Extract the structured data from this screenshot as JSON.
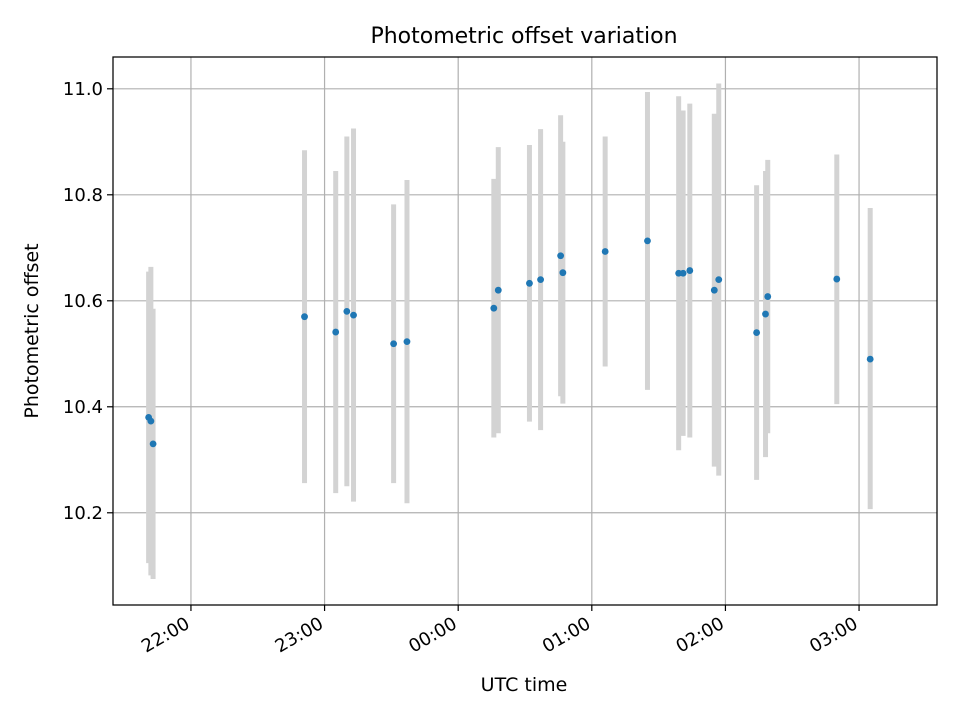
{
  "chart_data": {
    "type": "scatter",
    "title": "Photometric offset variation",
    "xlabel": "UTC time",
    "ylabel": "Photometric offset",
    "x_is_time": true,
    "xlim": [
      "21:25",
      "03:35"
    ],
    "ylim": [
      10.026,
      11.06
    ],
    "x_ticks": [
      "22:00",
      "23:00",
      "00:00",
      "01:00",
      "02:00",
      "03:00"
    ],
    "y_ticks": [
      "10.2",
      "10.4",
      "10.6",
      "10.8",
      "11.0"
    ],
    "grid": true,
    "legend": "none",
    "colors": {
      "point": "#1f77b4",
      "errorbar": "#d3d3d3",
      "grid": "#b0b0b0",
      "axes": "#000000"
    },
    "points": [
      {
        "x": "21:41",
        "y": 10.38,
        "ylow": 10.105,
        "yhigh": 10.655
      },
      {
        "x": "21:42",
        "y": 10.373,
        "ylow": 10.082,
        "yhigh": 10.664
      },
      {
        "x": "21:43",
        "y": 10.33,
        "ylow": 10.075,
        "yhigh": 10.585
      },
      {
        "x": "22:51",
        "y": 10.57,
        "ylow": 10.256,
        "yhigh": 10.884
      },
      {
        "x": "23:05",
        "y": 10.541,
        "ylow": 10.237,
        "yhigh": 10.845
      },
      {
        "x": "23:10",
        "y": 10.58,
        "ylow": 10.25,
        "yhigh": 10.91
      },
      {
        "x": "23:13",
        "y": 10.573,
        "ylow": 10.221,
        "yhigh": 10.925
      },
      {
        "x": "23:31",
        "y": 10.519,
        "ylow": 10.256,
        "yhigh": 10.782
      },
      {
        "x": "23:37",
        "y": 10.523,
        "ylow": 10.218,
        "yhigh": 10.828
      },
      {
        "x": "00:16",
        "y": 10.586,
        "ylow": 10.342,
        "yhigh": 10.83
      },
      {
        "x": "00:18",
        "y": 10.62,
        "ylow": 10.35,
        "yhigh": 10.89
      },
      {
        "x": "00:32",
        "y": 10.633,
        "ylow": 10.372,
        "yhigh": 10.894
      },
      {
        "x": "00:37",
        "y": 10.64,
        "ylow": 10.356,
        "yhigh": 10.924
      },
      {
        "x": "00:46",
        "y": 10.685,
        "ylow": 10.42,
        "yhigh": 10.95
      },
      {
        "x": "00:47",
        "y": 10.653,
        "ylow": 10.406,
        "yhigh": 10.9
      },
      {
        "x": "01:06",
        "y": 10.693,
        "ylow": 10.476,
        "yhigh": 10.91
      },
      {
        "x": "01:25",
        "y": 10.713,
        "ylow": 10.432,
        "yhigh": 10.994
      },
      {
        "x": "01:39",
        "y": 10.652,
        "ylow": 10.318,
        "yhigh": 10.986
      },
      {
        "x": "01:41",
        "y": 10.652,
        "ylow": 10.345,
        "yhigh": 10.959
      },
      {
        "x": "01:44",
        "y": 10.657,
        "ylow": 10.342,
        "yhigh": 10.972
      },
      {
        "x": "01:55",
        "y": 10.62,
        "ylow": 10.287,
        "yhigh": 10.953
      },
      {
        "x": "01:57",
        "y": 10.64,
        "ylow": 10.27,
        "yhigh": 11.01
      },
      {
        "x": "02:14",
        "y": 10.54,
        "ylow": 10.262,
        "yhigh": 10.818
      },
      {
        "x": "02:18",
        "y": 10.575,
        "ylow": 10.305,
        "yhigh": 10.845
      },
      {
        "x": "02:19",
        "y": 10.608,
        "ylow": 10.35,
        "yhigh": 10.866
      },
      {
        "x": "02:50",
        "y": 10.641,
        "ylow": 10.405,
        "yhigh": 10.876
      },
      {
        "x": "03:05",
        "y": 10.49,
        "ylow": 10.207,
        "yhigh": 10.775
      }
    ]
  }
}
